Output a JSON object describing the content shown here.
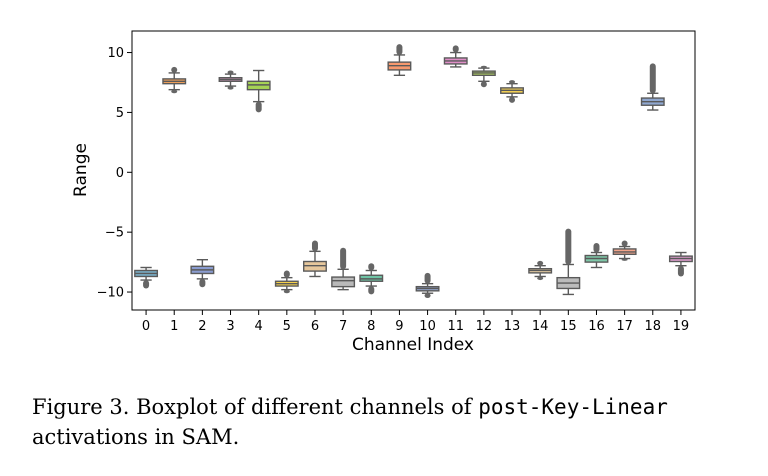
{
  "chart_data": {
    "type": "boxplot",
    "xlabel": "Channel Index",
    "ylabel": "Range",
    "ylim": [
      -11.5,
      11.8
    ],
    "yticks": [
      10,
      5,
      0,
      -5,
      -10
    ],
    "ytick_labels": [
      "10",
      "5",
      "0",
      "−5",
      "−10"
    ],
    "categories": [
      "0",
      "1",
      "2",
      "3",
      "4",
      "5",
      "6",
      "7",
      "8",
      "9",
      "10",
      "11",
      "12",
      "13",
      "14",
      "15",
      "16",
      "17",
      "18",
      "19"
    ],
    "colors": [
      "#79aec7",
      "#f0a05a",
      "#8a9cd0",
      "#e0a0c8",
      "#a6d355",
      "#f5d04a",
      "#e6c79c",
      "#b9b9b9",
      "#6fc4a5",
      "#f7996e",
      "#8f9fc5",
      "#e08ec8",
      "#b0d360",
      "#f2cf55",
      "#e0c8a0",
      "#bcbcbc",
      "#7fc7a8",
      "#f3a48a",
      "#90a8d0",
      "#e09fcf"
    ],
    "boxes": [
      {
        "channel": "0",
        "q1": -8.7,
        "median": -8.45,
        "q3": -8.2,
        "whisker_low": -9.0,
        "whisker_high": -7.95,
        "outlier_low": -9.7,
        "outlier_high": null
      },
      {
        "channel": "1",
        "q1": 7.4,
        "median": 7.6,
        "q3": 7.8,
        "whisker_low": 6.9,
        "whisker_high": 8.3,
        "outlier_low": 6.6,
        "outlier_high": 8.8
      },
      {
        "channel": "2",
        "q1": -8.45,
        "median": -8.15,
        "q3": -7.85,
        "whisker_low": -8.9,
        "whisker_high": -7.3,
        "outlier_low": -9.6,
        "outlier_high": null
      },
      {
        "channel": "3",
        "q1": 7.6,
        "median": 7.75,
        "q3": 7.9,
        "whisker_low": 7.2,
        "whisker_high": 8.2,
        "outlier_low": 6.9,
        "outlier_high": 8.5
      },
      {
        "channel": "4",
        "q1": 6.9,
        "median": 7.3,
        "q3": 7.6,
        "whisker_low": 5.9,
        "whisker_high": 8.5,
        "outlier_low": 5.0,
        "outlier_high": null
      },
      {
        "channel": "5",
        "q1": -9.5,
        "median": -9.3,
        "q3": -9.1,
        "whisker_low": -9.8,
        "whisker_high": -8.8,
        "outlier_low": -10.1,
        "outlier_high": -8.2
      },
      {
        "channel": "6",
        "q1": -8.25,
        "median": -7.8,
        "q3": -7.45,
        "whisker_low": -8.7,
        "whisker_high": -6.6,
        "outlier_low": null,
        "outlier_high": -5.7
      },
      {
        "channel": "7",
        "q1": -9.55,
        "median": -9.05,
        "q3": -8.75,
        "whisker_low": -9.8,
        "whisker_high": -8.1,
        "outlier_low": null,
        "outlier_high": -6.3
      },
      {
        "channel": "8",
        "q1": -9.1,
        "median": -8.9,
        "q3": -8.6,
        "whisker_low": -9.5,
        "whisker_high": -8.2,
        "outlier_low": -10.2,
        "outlier_high": -7.6
      },
      {
        "channel": "9",
        "q1": 8.55,
        "median": 8.9,
        "q3": 9.2,
        "whisker_low": 8.1,
        "whisker_high": 9.8,
        "outlier_low": null,
        "outlier_high": 10.7
      },
      {
        "channel": "10",
        "q1": -9.9,
        "median": -9.7,
        "q3": -9.55,
        "whisker_low": -10.1,
        "whisker_high": -9.3,
        "outlier_low": -10.5,
        "outlier_high": -8.4
      },
      {
        "channel": "11",
        "q1": 9.05,
        "median": 9.3,
        "q3": 9.55,
        "whisker_low": 8.8,
        "whisker_high": 10.0,
        "outlier_low": null,
        "outlier_high": 10.6
      },
      {
        "channel": "12",
        "q1": 8.1,
        "median": 8.3,
        "q3": 8.45,
        "whisker_low": 7.6,
        "whisker_high": 8.7,
        "outlier_low": 7.1,
        "outlier_high": 8.9
      },
      {
        "channel": "13",
        "q1": 6.6,
        "median": 6.85,
        "q3": 7.05,
        "whisker_low": 6.3,
        "whisker_high": 7.4,
        "outlier_low": 5.8,
        "outlier_high": 7.7
      },
      {
        "channel": "14",
        "q1": -8.4,
        "median": -8.2,
        "q3": -8.05,
        "whisker_low": -8.7,
        "whisker_high": -7.8,
        "outlier_low": -9.0,
        "outlier_high": -7.4
      },
      {
        "channel": "15",
        "q1": -9.7,
        "median": -9.25,
        "q3": -8.8,
        "whisker_low": -10.2,
        "whisker_high": -7.7,
        "outlier_low": null,
        "outlier_high": -4.7
      },
      {
        "channel": "16",
        "q1": -7.5,
        "median": -7.2,
        "q3": -6.95,
        "whisker_low": -7.95,
        "whisker_high": -6.7,
        "outlier_low": null,
        "outlier_high": -5.9
      },
      {
        "channel": "17",
        "q1": -6.85,
        "median": -6.65,
        "q3": -6.4,
        "whisker_low": -7.2,
        "whisker_high": -6.2,
        "outlier_low": -7.4,
        "outlier_high": -5.7
      },
      {
        "channel": "18",
        "q1": 5.6,
        "median": 5.9,
        "q3": 6.2,
        "whisker_low": 5.2,
        "whisker_high": 6.6,
        "outlier_low": null,
        "outlier_high": 9.1
      },
      {
        "channel": "19",
        "q1": -7.45,
        "median": -7.2,
        "q3": -7.0,
        "whisker_low": -7.8,
        "whisker_high": -6.7,
        "outlier_low": -8.7,
        "outlier_high": null
      }
    ]
  },
  "caption": {
    "prefix": "Figure 3.  Boxplot of different channels of ",
    "code": "post-Key-Linear",
    "suffix": " activations in SAM."
  }
}
